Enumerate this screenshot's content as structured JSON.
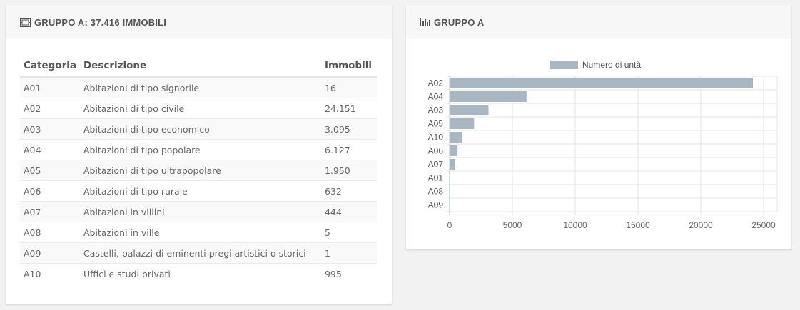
{
  "left_panel": {
    "title": "GRUPPO A: 37.416 IMMOBILI",
    "icon": "building-icon",
    "headers": {
      "category": "Categoria",
      "description": "Descrizione",
      "count": "Immobili"
    },
    "rows": [
      {
        "category": "A01",
        "description": "Abitazioni di tipo signorile",
        "count": "16"
      },
      {
        "category": "A02",
        "description": "Abitazioni di tipo civile",
        "count": "24.151"
      },
      {
        "category": "A03",
        "description": "Abitazioni di tipo economico",
        "count": "3.095"
      },
      {
        "category": "A04",
        "description": "Abitazioni di tipo popolare",
        "count": "6.127"
      },
      {
        "category": "A05",
        "description": "Abitazioni di tipo ultrapopolare",
        "count": "1.950"
      },
      {
        "category": "A06",
        "description": "Abitazioni di tipo rurale",
        "count": "632"
      },
      {
        "category": "A07",
        "description": "Abitazioni in villini",
        "count": "444"
      },
      {
        "category": "A08",
        "description": "Abitazioni in ville",
        "count": "5"
      },
      {
        "category": "A09",
        "description": "Castelli, palazzi di eminenti pregi artistici o storici",
        "count": "1"
      },
      {
        "category": "A10",
        "description": "Uffici e studi privati",
        "count": "995"
      }
    ]
  },
  "right_panel": {
    "title": "GRUPPO A",
    "icon": "bar-chart-icon"
  },
  "chart_data": {
    "type": "bar",
    "orientation": "horizontal",
    "categories": [
      "A02",
      "A04",
      "A03",
      "A05",
      "A10",
      "A06",
      "A07",
      "A01",
      "A08",
      "A09"
    ],
    "series": [
      {
        "name": "Numero di untà",
        "values": [
          24151,
          6127,
          3095,
          1950,
          995,
          632,
          444,
          16,
          5,
          1
        ]
      }
    ],
    "xlim": [
      0,
      25000
    ],
    "xticks": [
      0,
      5000,
      10000,
      15000,
      20000,
      25000
    ],
    "grid": true,
    "legend": "top",
    "bar_color": "#a8b7c2"
  }
}
